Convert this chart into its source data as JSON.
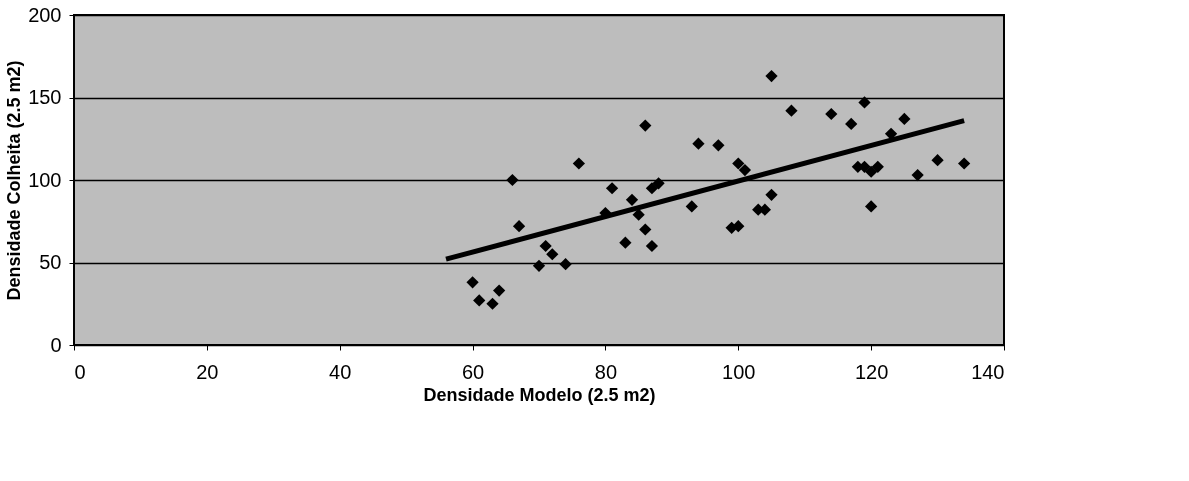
{
  "chart_data": {
    "type": "scatter",
    "xlabel": "Densidade Modelo (2.5 m2)",
    "ylabel": "Densidade Colheita (2.5 m2)",
    "xlim": [
      0,
      140
    ],
    "xticks": [
      0,
      20,
      40,
      60,
      80,
      100,
      120,
      140
    ],
    "ylim": [
      0,
      200
    ],
    "yticks": [
      0,
      50,
      100,
      150,
      200
    ],
    "grid": "y",
    "marker": "diamond",
    "series": [
      {
        "color": "#000000",
        "x": [
          60,
          61,
          63,
          64,
          66,
          67,
          70,
          71,
          72,
          74,
          76,
          80,
          81,
          83,
          84,
          85,
          86,
          86,
          87,
          87,
          88,
          93,
          94,
          97,
          99,
          100,
          100,
          101,
          103,
          104,
          105,
          105,
          108,
          114,
          117,
          118,
          119,
          119,
          120,
          120,
          121,
          123,
          125,
          127,
          130,
          134
        ],
        "values": [
          38,
          27,
          25,
          33,
          100,
          72,
          48,
          60,
          55,
          49,
          110,
          80,
          95,
          62,
          88,
          79,
          133,
          70,
          95,
          60,
          98,
          84,
          122,
          121,
          71,
          72,
          110,
          106,
          82,
          82,
          91,
          163,
          142,
          140,
          134,
          108,
          147,
          108,
          84,
          105,
          108,
          128,
          137,
          103,
          112,
          110
        ]
      },
      {
        "type": "line",
        "color": "#000000",
        "marker": "none",
        "line_style": "solid",
        "x": [
          56,
          134
        ],
        "values": [
          52,
          136
        ]
      }
    ]
  }
}
